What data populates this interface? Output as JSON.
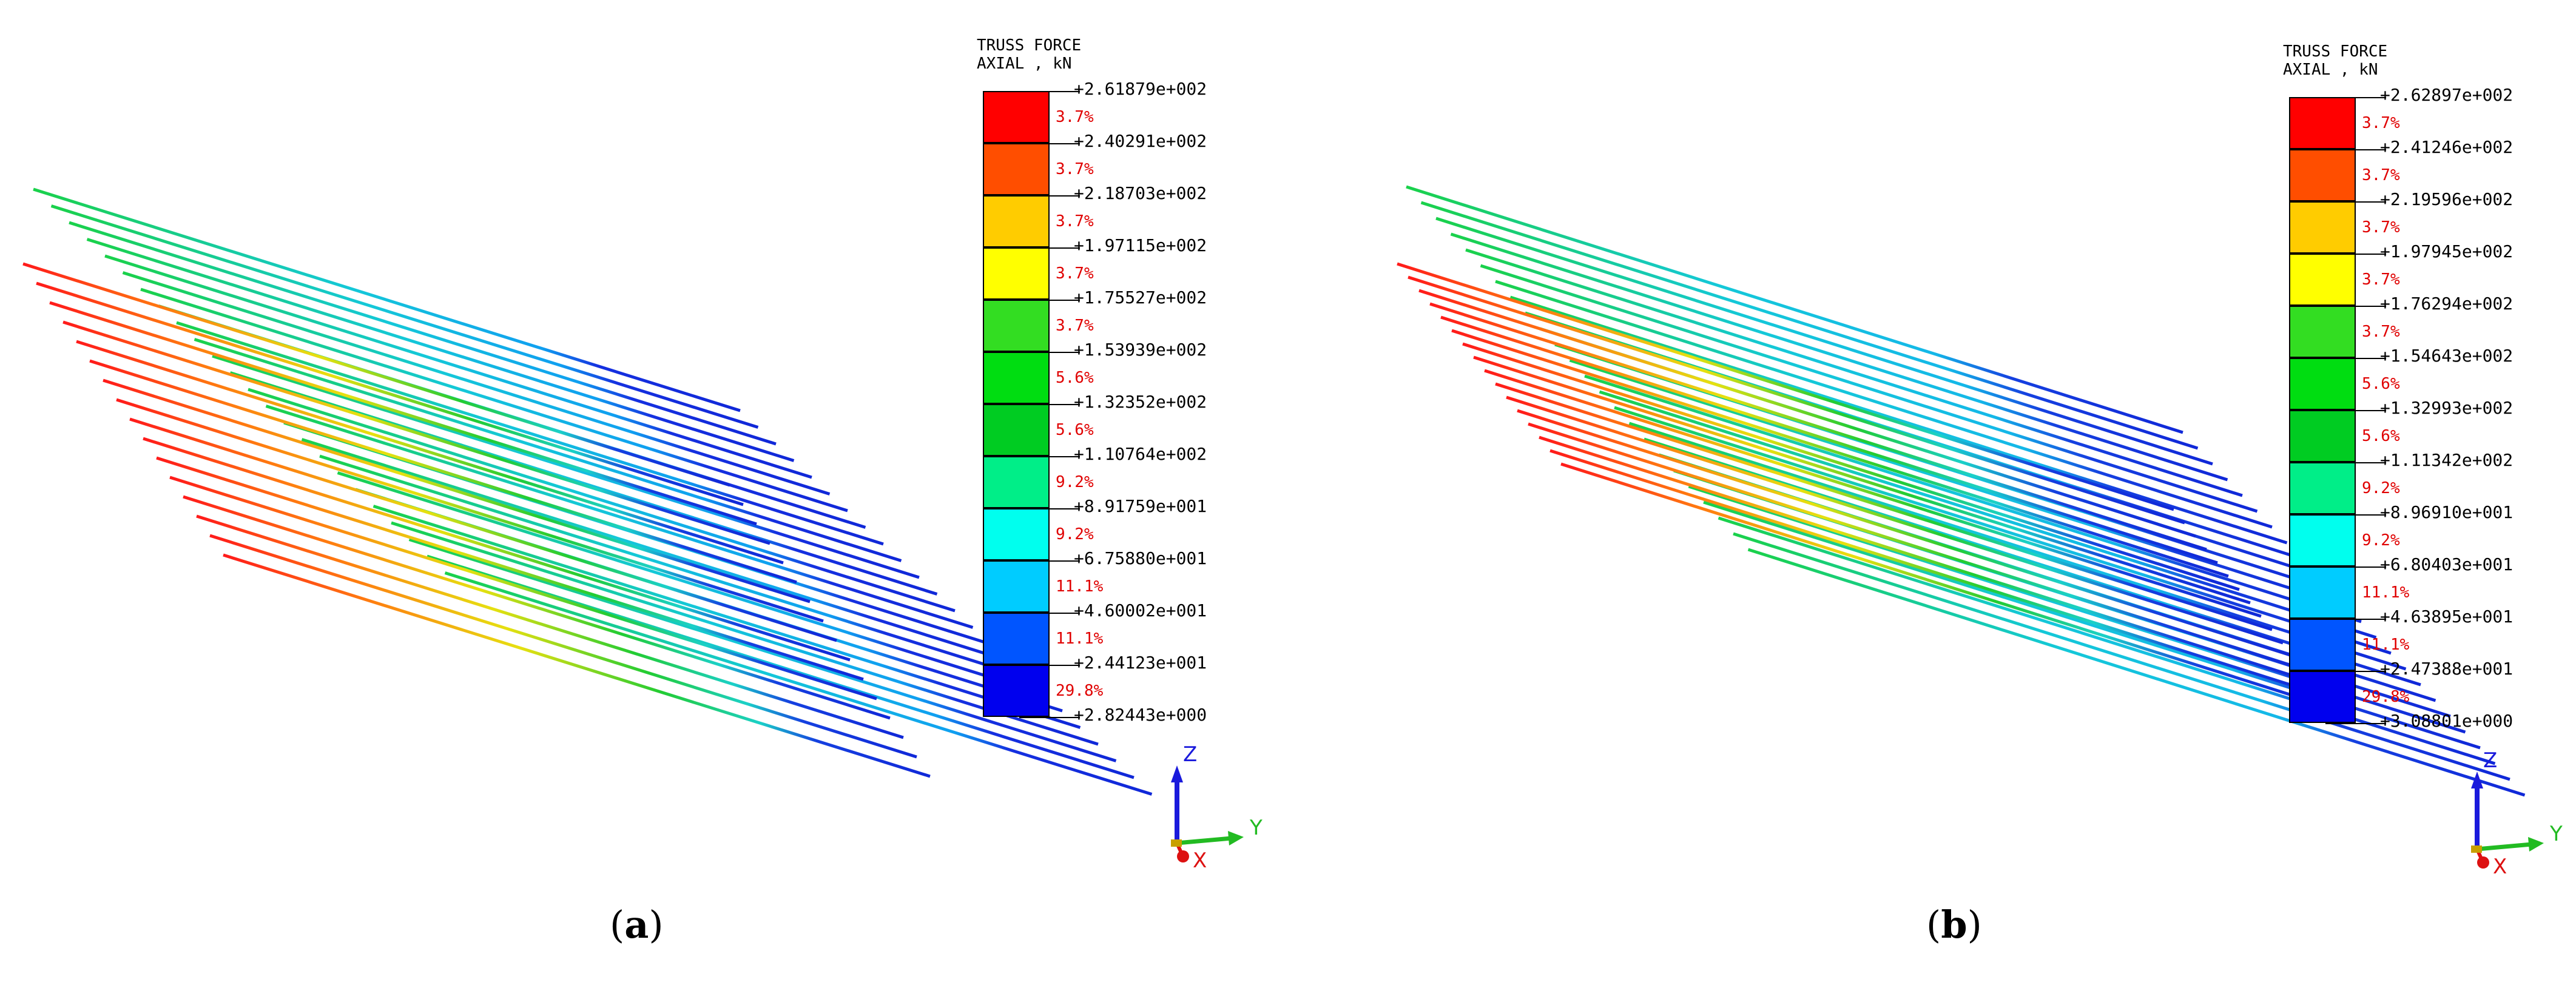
{
  "panels": [
    {
      "id": "a",
      "caption": {
        "open": "(",
        "letter": "a",
        "close": ")"
      },
      "legend": {
        "title": "TRUSS FORCE\nAXIAL , kN",
        "ticks": [
          "+2.61879e+002",
          "+2.40291e+002",
          "+2.18703e+002",
          "+1.97115e+002",
          "+1.75527e+002",
          "+1.53939e+002",
          "+1.32352e+002",
          "+1.10764e+002",
          "+8.91759e+001",
          "+6.75880e+001",
          "+4.60002e+001",
          "+2.44123e+001",
          "+2.82443e+000"
        ],
        "percents": [
          "3.7%",
          "3.7%",
          "3.7%",
          "3.7%",
          "3.7%",
          "5.6%",
          "5.6%",
          "9.2%",
          "9.2%",
          "11.1%",
          "11.1%",
          "29.8%"
        ],
        "colors": [
          "#ff0000",
          "#ff4e00",
          "#ffcc00",
          "#ffff00",
          "#33dd22",
          "#00dd11",
          "#00cc22",
          "#00ee88",
          "#00ffee",
          "#00ccff",
          "#0055ff",
          "#0000ee"
        ]
      },
      "triad": {
        "z": "Z",
        "y": "Y",
        "x": "X"
      }
    },
    {
      "id": "b",
      "caption": {
        "open": "(",
        "letter": "b",
        "close": ")"
      },
      "legend": {
        "title": "TRUSS FORCE\nAXIAL , kN",
        "ticks": [
          "+2.62897e+002",
          "+2.41246e+002",
          "+2.19596e+002",
          "+1.97945e+002",
          "+1.76294e+002",
          "+1.54643e+002",
          "+1.32993e+002",
          "+1.11342e+002",
          "+8.96910e+001",
          "+6.80403e+001",
          "+4.63895e+001",
          "+2.47388e+001",
          "+3.08801e+000"
        ],
        "percents": [
          "3.7%",
          "3.7%",
          "3.7%",
          "3.7%",
          "3.7%",
          "5.6%",
          "5.6%",
          "9.2%",
          "9.2%",
          "11.1%",
          "11.1%",
          "29.8%"
        ],
        "colors": [
          "#ff0000",
          "#ff4e00",
          "#ffcc00",
          "#ffff00",
          "#33dd22",
          "#00dd11",
          "#00cc22",
          "#00ee88",
          "#00ffee",
          "#00ccff",
          "#0055ff",
          "#0000ee"
        ]
      },
      "triad": {
        "z": "Z",
        "y": "Y",
        "x": "X"
      }
    }
  ]
}
